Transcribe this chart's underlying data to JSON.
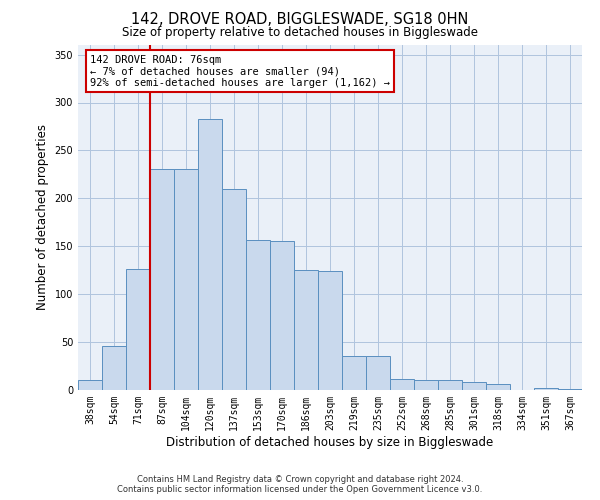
{
  "title_line1": "142, DROVE ROAD, BIGGLESWADE, SG18 0HN",
  "title_line2": "Size of property relative to detached houses in Biggleswade",
  "xlabel": "Distribution of detached houses by size in Biggleswade",
  "ylabel": "Number of detached properties",
  "bins": [
    "38sqm",
    "54sqm",
    "71sqm",
    "87sqm",
    "104sqm",
    "120sqm",
    "137sqm",
    "153sqm",
    "170sqm",
    "186sqm",
    "203sqm",
    "219sqm",
    "235sqm",
    "252sqm",
    "268sqm",
    "285sqm",
    "301sqm",
    "318sqm",
    "334sqm",
    "351sqm",
    "367sqm"
  ],
  "bar_heights": [
    10,
    46,
    126,
    231,
    231,
    283,
    210,
    157,
    156,
    125,
    124,
    35,
    35,
    11,
    10,
    10,
    8,
    6,
    0,
    2,
    1
  ],
  "bar_color": "#c9d9ed",
  "bar_edge_color": "#5a8fc0",
  "vline_x_index": 2,
  "vline_color": "#cc0000",
  "annotation_title": "142 DROVE ROAD: 76sqm",
  "annotation_line2": "← 7% of detached houses are smaller (94)",
  "annotation_line3": "92% of semi-detached houses are larger (1,162) →",
  "annotation_box_color": "#ffffff",
  "annotation_box_edge": "#cc0000",
  "ylim": [
    0,
    360
  ],
  "yticks": [
    0,
    50,
    100,
    150,
    200,
    250,
    300,
    350
  ],
  "grid_color": "#b0c4de",
  "background_color": "#eaf0f8",
  "footer_line1": "Contains HM Land Registry data © Crown copyright and database right 2024.",
  "footer_line2": "Contains public sector information licensed under the Open Government Licence v3.0."
}
